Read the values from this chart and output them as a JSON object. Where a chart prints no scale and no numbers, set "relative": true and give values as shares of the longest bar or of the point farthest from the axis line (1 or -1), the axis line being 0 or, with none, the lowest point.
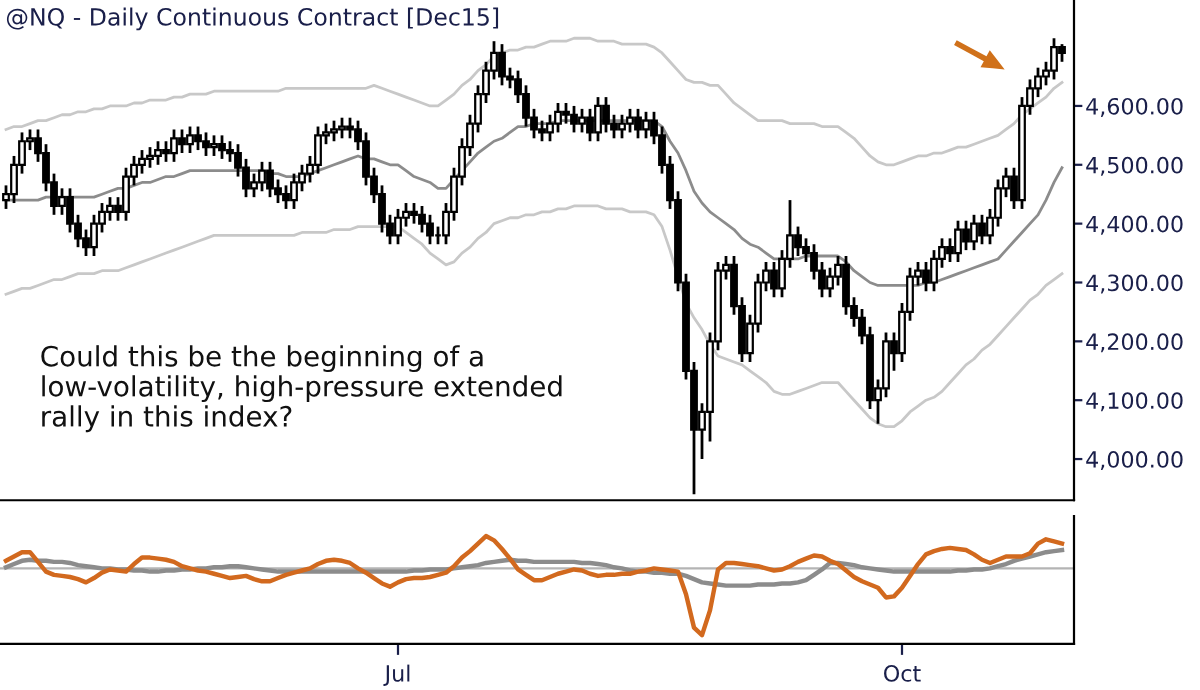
{
  "chart_data": [
    {
      "type": "candlestick",
      "title": "@NQ - Daily Continuous Contract [Dec15]",
      "categories": [
        null,
        null,
        null,
        null,
        null,
        null,
        null,
        null,
        null,
        null,
        null,
        null,
        null,
        null,
        null,
        null,
        null,
        null,
        null,
        null,
        null,
        null,
        null,
        null,
        null,
        null,
        null,
        null,
        null,
        null,
        null,
        null,
        null,
        null,
        null,
        null,
        null,
        null,
        null,
        null,
        null,
        null,
        null,
        null,
        null,
        null,
        null,
        null,
        null,
        null,
        null,
        null,
        null,
        null,
        null,
        null,
        null,
        null,
        null,
        null,
        null,
        null,
        null,
        null,
        null,
        null,
        null,
        null,
        null,
        null,
        null,
        null,
        null,
        null,
        null,
        null,
        null,
        null,
        null,
        null,
        null,
        null,
        null,
        null,
        null,
        null,
        null,
        null,
        null,
        null,
        null,
        null,
        null,
        null,
        null,
        null,
        null,
        null,
        null,
        null,
        null,
        null,
        null,
        null,
        null,
        null,
        null,
        null,
        null,
        null,
        null,
        null,
        null,
        null,
        null,
        null,
        null,
        null,
        null,
        null,
        null,
        null,
        null,
        null,
        null,
        null,
        null,
        null,
        null,
        null,
        null,
        null,
        null
      ],
      "ohlc": [
        [
          4440,
          4465,
          4425,
          4450
        ],
        [
          4450,
          4515,
          4435,
          4500
        ],
        [
          4500,
          4555,
          4485,
          4540
        ],
        [
          4540,
          4560,
          4525,
          4545
        ],
        [
          4545,
          4560,
          4505,
          4520
        ],
        [
          4520,
          4535,
          4455,
          4470
        ],
        [
          4470,
          4485,
          4415,
          4430
        ],
        [
          4430,
          4460,
          4415,
          4445
        ],
        [
          4445,
          4460,
          4385,
          4400
        ],
        [
          4400,
          4415,
          4360,
          4375
        ],
        [
          4375,
          4390,
          4345,
          4360
        ],
        [
          4360,
          4415,
          4345,
          4400
        ],
        [
          4400,
          4435,
          4385,
          4420
        ],
        [
          4420,
          4445,
          4405,
          4430
        ],
        [
          4430,
          4445,
          4405,
          4420
        ],
        [
          4420,
          4495,
          4405,
          4480
        ],
        [
          4480,
          4515,
          4465,
          4500
        ],
        [
          4500,
          4525,
          4485,
          4510
        ],
        [
          4510,
          4530,
          4495,
          4515
        ],
        [
          4515,
          4540,
          4500,
          4525
        ],
        [
          4525,
          4540,
          4505,
          4520
        ],
        [
          4520,
          4560,
          4505,
          4545
        ],
        [
          4545,
          4560,
          4520,
          4535
        ],
        [
          4535,
          4565,
          4520,
          4550
        ],
        [
          4550,
          4565,
          4525,
          4540
        ],
        [
          4540,
          4555,
          4515,
          4530
        ],
        [
          4530,
          4550,
          4515,
          4535
        ],
        [
          4535,
          4550,
          4510,
          4525
        ],
        [
          4525,
          4540,
          4505,
          4520
        ],
        [
          4520,
          4535,
          4480,
          4495
        ],
        [
          4495,
          4510,
          4445,
          4460
        ],
        [
          4460,
          4485,
          4445,
          4470
        ],
        [
          4470,
          4505,
          4455,
          4490
        ],
        [
          4490,
          4505,
          4445,
          4460
        ],
        [
          4460,
          4475,
          4435,
          4450
        ],
        [
          4450,
          4465,
          4425,
          4440
        ],
        [
          4440,
          4485,
          4425,
          4470
        ],
        [
          4470,
          4500,
          4455,
          4485
        ],
        [
          4485,
          4515,
          4470,
          4500
        ],
        [
          4500,
          4565,
          4485,
          4550
        ],
        [
          4550,
          4570,
          4535,
          4555
        ],
        [
          4555,
          4575,
          4540,
          4560
        ],
        [
          4560,
          4580,
          4545,
          4565
        ],
        [
          4565,
          4580,
          4545,
          4560
        ],
        [
          4560,
          4575,
          4525,
          4540
        ],
        [
          4540,
          4555,
          4465,
          4480
        ],
        [
          4480,
          4495,
          4435,
          4450
        ],
        [
          4450,
          4465,
          4385,
          4400
        ],
        [
          4400,
          4415,
          4365,
          4380
        ],
        [
          4380,
          4425,
          4365,
          4410
        ],
        [
          4410,
          4435,
          4395,
          4420
        ],
        [
          4420,
          4435,
          4400,
          4415
        ],
        [
          4415,
          4430,
          4385,
          4400
        ],
        [
          4400,
          4415,
          4365,
          4380
        ],
        [
          4380,
          4395,
          4365,
          4380
        ],
        [
          4380,
          4435,
          4365,
          4420
        ],
        [
          4420,
          4495,
          4405,
          4480
        ],
        [
          4480,
          4545,
          4465,
          4530
        ],
        [
          4530,
          4585,
          4515,
          4570
        ],
        [
          4570,
          4635,
          4555,
          4620
        ],
        [
          4620,
          4675,
          4605,
          4660
        ],
        [
          4660,
          4710,
          4645,
          4690
        ],
        [
          4690,
          4705,
          4635,
          4650
        ],
        [
          4650,
          4665,
          4630,
          4645
        ],
        [
          4645,
          4660,
          4605,
          4620
        ],
        [
          4620,
          4635,
          4565,
          4580
        ],
        [
          4580,
          4595,
          4545,
          4560
        ],
        [
          4560,
          4575,
          4540,
          4555
        ],
        [
          4555,
          4585,
          4540,
          4570
        ],
        [
          4570,
          4605,
          4555,
          4590
        ],
        [
          4590,
          4605,
          4570,
          4585
        ],
        [
          4585,
          4600,
          4555,
          4570
        ],
        [
          4570,
          4595,
          4555,
          4580
        ],
        [
          4580,
          4595,
          4540,
          4555
        ],
        [
          4555,
          4615,
          4540,
          4600
        ],
        [
          4600,
          4615,
          4555,
          4570
        ],
        [
          4570,
          4585,
          4545,
          4560
        ],
        [
          4560,
          4585,
          4545,
          4570
        ],
        [
          4570,
          4595,
          4555,
          4580
        ],
        [
          4580,
          4595,
          4545,
          4560
        ],
        [
          4560,
          4590,
          4545,
          4575
        ],
        [
          4575,
          4590,
          4535,
          4550
        ],
        [
          4550,
          4565,
          4485,
          4500
        ],
        [
          4500,
          4515,
          4425,
          4440
        ],
        [
          4440,
          4455,
          4285,
          4300
        ],
        [
          4300,
          4315,
          4135,
          4150
        ],
        [
          4150,
          4165,
          3940,
          4050
        ],
        [
          4050,
          4095,
          4000,
          4080
        ],
        [
          4080,
          4215,
          4030,
          4200
        ],
        [
          4200,
          4335,
          4185,
          4320
        ],
        [
          4320,
          4345,
          4305,
          4330
        ],
        [
          4330,
          4345,
          4245,
          4260
        ],
        [
          4260,
          4275,
          4165,
          4180
        ],
        [
          4180,
          4245,
          4165,
          4230
        ],
        [
          4230,
          4315,
          4215,
          4300
        ],
        [
          4300,
          4335,
          4285,
          4320
        ],
        [
          4320,
          4335,
          4275,
          4290
        ],
        [
          4290,
          4355,
          4275,
          4340
        ],
        [
          4340,
          4440,
          4325,
          4380
        ],
        [
          4380,
          4395,
          4345,
          4360
        ],
        [
          4360,
          4375,
          4335,
          4350
        ],
        [
          4350,
          4365,
          4305,
          4320
        ],
        [
          4320,
          4335,
          4275,
          4290
        ],
        [
          4290,
          4325,
          4275,
          4310
        ],
        [
          4310,
          4345,
          4295,
          4330
        ],
        [
          4330,
          4345,
          4245,
          4260
        ],
        [
          4260,
          4275,
          4225,
          4240
        ],
        [
          4240,
          4255,
          4195,
          4210
        ],
        [
          4210,
          4225,
          4085,
          4100
        ],
        [
          4100,
          4135,
          4060,
          4120
        ],
        [
          4120,
          4215,
          4105,
          4200
        ],
        [
          4200,
          4215,
          4150,
          4180
        ],
        [
          4180,
          4265,
          4165,
          4250
        ],
        [
          4250,
          4325,
          4235,
          4310
        ],
        [
          4310,
          4335,
          4295,
          4320
        ],
        [
          4320,
          4335,
          4285,
          4300
        ],
        [
          4300,
          4355,
          4285,
          4340
        ],
        [
          4340,
          4375,
          4325,
          4360
        ],
        [
          4360,
          4375,
          4335,
          4350
        ],
        [
          4350,
          4405,
          4335,
          4390
        ],
        [
          4390,
          4405,
          4355,
          4370
        ],
        [
          4370,
          4415,
          4355,
          4400
        ],
        [
          4400,
          4415,
          4365,
          4380
        ],
        [
          4380,
          4425,
          4365,
          4410
        ],
        [
          4410,
          4475,
          4395,
          4460
        ],
        [
          4460,
          4495,
          4445,
          4480
        ],
        [
          4480,
          4495,
          4425,
          4440
        ],
        [
          4440,
          4615,
          4425,
          4600
        ],
        [
          4600,
          4645,
          4585,
          4630
        ],
        [
          4630,
          4665,
          4615,
          4650
        ],
        [
          4650,
          4675,
          4635,
          4660
        ],
        [
          4660,
          4715,
          4645,
          4700
        ],
        [
          4700,
          4705,
          4675,
          4690
        ]
      ],
      "series": [
        {
          "type": "line",
          "color": "#c8c8c8",
          "values": [
            4560,
            4565,
            4565,
            4570,
            4575,
            4575,
            4580,
            4585,
            4585,
            4590,
            4590,
            4595,
            4595,
            4600,
            4600,
            4600,
            4605,
            4605,
            4610,
            4610,
            4610,
            4615,
            4615,
            4620,
            4620,
            4620,
            4625,
            4625,
            4625,
            4625,
            4625,
            4625,
            4625,
            4625,
            4625,
            4630,
            4630,
            4630,
            4630,
            4630,
            4630,
            4630,
            4630,
            4630,
            4630,
            4630,
            4635,
            4630,
            4625,
            4620,
            4615,
            4610,
            4605,
            4600,
            4600,
            4610,
            4620,
            4635,
            4645,
            4660,
            4670,
            4685,
            4690,
            4695,
            4695,
            4700,
            4700,
            4705,
            4710,
            4710,
            4710,
            4715,
            4715,
            4715,
            4710,
            4710,
            4710,
            4705,
            4705,
            4705,
            4705,
            4700,
            4690,
            4675,
            4660,
            4645,
            4640,
            4640,
            4635,
            4635,
            4620,
            4605,
            4595,
            4585,
            4575,
            4575,
            4575,
            4575,
            4570,
            4570,
            4570,
            4570,
            4565,
            4565,
            4565,
            4555,
            4545,
            4530,
            4515,
            4505,
            4500,
            4500,
            4505,
            4510,
            4515,
            4515,
            4520,
            4520,
            4525,
            4530,
            4530,
            4535,
            4540,
            4545,
            4550,
            4560,
            4570,
            4585,
            4595,
            4605,
            4615,
            4630,
            4640
          ]
        },
        {
          "type": "line",
          "color": "#8c8c8c",
          "values": [
            4440,
            4440,
            4440,
            4440,
            4440,
            4445,
            4445,
            4445,
            4445,
            4445,
            4445,
            4445,
            4450,
            4455,
            4460,
            4460,
            4465,
            4470,
            4470,
            4475,
            4480,
            4480,
            4485,
            4490,
            4490,
            4490,
            4490,
            4490,
            4490,
            4490,
            4490,
            4490,
            4490,
            4485,
            4485,
            4480,
            4480,
            4480,
            4485,
            4490,
            4495,
            4500,
            4505,
            4510,
            4515,
            4510,
            4510,
            4505,
            4500,
            4500,
            4490,
            4480,
            4475,
            4470,
            4460,
            4460,
            4475,
            4490,
            4505,
            4520,
            4530,
            4540,
            4545,
            4555,
            4565,
            4565,
            4570,
            4570,
            4570,
            4575,
            4575,
            4575,
            4575,
            4575,
            4575,
            4575,
            4575,
            4575,
            4575,
            4575,
            4575,
            4575,
            4565,
            4540,
            4520,
            4490,
            4455,
            4435,
            4420,
            4410,
            4400,
            4390,
            4375,
            4365,
            4360,
            4350,
            4340,
            4340,
            4340,
            4340,
            4345,
            4345,
            4345,
            4345,
            4345,
            4335,
            4320,
            4310,
            4300,
            4295,
            4295,
            4295,
            4295,
            4295,
            4295,
            4300,
            4300,
            4305,
            4310,
            4315,
            4320,
            4325,
            4330,
            4335,
            4340,
            4355,
            4370,
            4385,
            4400,
            4415,
            4440,
            4470,
            4495
          ]
        },
        {
          "type": "line",
          "color": "#c8c8c8",
          "values": [
            4280,
            4285,
            4290,
            4290,
            4295,
            4300,
            4305,
            4305,
            4310,
            4315,
            4315,
            4315,
            4320,
            4320,
            4320,
            4325,
            4330,
            4335,
            4340,
            4345,
            4350,
            4355,
            4360,
            4365,
            4370,
            4375,
            4380,
            4380,
            4380,
            4380,
            4380,
            4380,
            4380,
            4380,
            4380,
            4380,
            4380,
            4385,
            4385,
            4385,
            4385,
            4390,
            4390,
            4390,
            4395,
            4395,
            4395,
            4395,
            4395,
            4395,
            4385,
            4375,
            4365,
            4350,
            4340,
            4330,
            4335,
            4350,
            4360,
            4375,
            4385,
            4400,
            4405,
            4410,
            4410,
            4415,
            4415,
            4420,
            4420,
            4425,
            4425,
            4430,
            4430,
            4430,
            4430,
            4425,
            4425,
            4425,
            4420,
            4420,
            4420,
            4415,
            4395,
            4355,
            4310,
            4265,
            4240,
            4220,
            4195,
            4175,
            4170,
            4165,
            4160,
            4150,
            4140,
            4130,
            4115,
            4110,
            4110,
            4115,
            4120,
            4125,
            4130,
            4130,
            4130,
            4115,
            4100,
            4085,
            4070,
            4060,
            4055,
            4055,
            4065,
            4080,
            4090,
            4100,
            4105,
            4115,
            4130,
            4145,
            4160,
            4170,
            4185,
            4195,
            4210,
            4225,
            4240,
            4255,
            4270,
            4280,
            4295,
            4305,
            4315
          ]
        }
      ],
      "ylim": [
        3930,
        4780
      ],
      "yticks": [
        {
          "value": 4000,
          "label": "4,000.00"
        },
        {
          "value": 4100,
          "label": "4,100.00"
        },
        {
          "value": 4200,
          "label": "4,200.00"
        },
        {
          "value": 4300,
          "label": "4,300.00"
        },
        {
          "value": 4400,
          "label": "4,400.00"
        },
        {
          "value": 4500,
          "label": "4,500.00"
        },
        {
          "value": 4600,
          "label": "4,600.00"
        }
      ],
      "tick_labels": "y",
      "annotations": [
        "Could this be the beginning of a\nlow-volatility, high-pressure extended\nrally in this index?"
      ]
    },
    {
      "type": "line",
      "relative": true,
      "categories": [
        null,
        null,
        null,
        null,
        null,
        null,
        null,
        null,
        null,
        null,
        null,
        null,
        null,
        null,
        null,
        null,
        null,
        null,
        null,
        null,
        null,
        null,
        null,
        null,
        null,
        null,
        null,
        null,
        null,
        null,
        null,
        null,
        null,
        null,
        null,
        null,
        null,
        null,
        null,
        null,
        null,
        null,
        null,
        null,
        null,
        null,
        null,
        null,
        null,
        "Jul",
        null,
        null,
        null,
        null,
        null,
        null,
        null,
        null,
        null,
        null,
        null,
        null,
        null,
        null,
        null,
        null,
        null,
        null,
        null,
        null,
        null,
        null,
        null,
        null,
        null,
        null,
        null,
        null,
        null,
        null,
        null,
        null,
        null,
        null,
        null,
        null,
        null,
        null,
        null,
        null,
        null,
        null,
        null,
        null,
        null,
        null,
        null,
        null,
        null,
        null,
        null,
        null,
        null,
        null,
        null,
        null,
        null,
        null,
        null,
        null,
        null,
        null,
        "Oct",
        null,
        null,
        null,
        null,
        null,
        null,
        null,
        null,
        null,
        null,
        null,
        null,
        null,
        null,
        null,
        null,
        null,
        null,
        null,
        null
      ],
      "series": [
        {
          "color": "#8c8c8c",
          "values": [
            0.71,
            0.74,
            0.77,
            0.78,
            0.77,
            0.77,
            0.76,
            0.76,
            0.75,
            0.73,
            0.72,
            0.71,
            0.7,
            0.7,
            0.69,
            0.69,
            0.68,
            0.68,
            0.67,
            0.67,
            0.68,
            0.68,
            0.69,
            0.69,
            0.7,
            0.7,
            0.71,
            0.71,
            0.72,
            0.72,
            0.71,
            0.7,
            0.69,
            0.68,
            0.67,
            0.67,
            0.67,
            0.67,
            0.67,
            0.67,
            0.67,
            0.67,
            0.67,
            0.67,
            0.67,
            0.67,
            0.67,
            0.67,
            0.67,
            0.67,
            0.67,
            0.68,
            0.68,
            0.69,
            0.69,
            0.69,
            0.7,
            0.71,
            0.72,
            0.73,
            0.75,
            0.76,
            0.77,
            0.78,
            0.77,
            0.77,
            0.76,
            0.76,
            0.76,
            0.76,
            0.76,
            0.76,
            0.75,
            0.75,
            0.74,
            0.73,
            0.71,
            0.7,
            0.68,
            0.67,
            0.67,
            0.66,
            0.66,
            0.65,
            0.65,
            0.63,
            0.6,
            0.57,
            0.56,
            0.55,
            0.54,
            0.54,
            0.54,
            0.54,
            0.55,
            0.55,
            0.55,
            0.56,
            0.56,
            0.57,
            0.59,
            0.64,
            0.69,
            0.75,
            0.75,
            0.74,
            0.73,
            0.71,
            0.7,
            0.69,
            0.68,
            0.67,
            0.67,
            0.67,
            0.67,
            0.67,
            0.67,
            0.67,
            0.67,
            0.68,
            0.68,
            0.69,
            0.69,
            0.7,
            0.72,
            0.74,
            0.77,
            0.79,
            0.81,
            0.83,
            0.85,
            0.86,
            0.87
          ]
        },
        {
          "color": "#d2691e",
          "values": [
            0.77,
            0.81,
            0.85,
            0.85,
            0.76,
            0.67,
            0.64,
            0.63,
            0.62,
            0.6,
            0.57,
            0.61,
            0.66,
            0.69,
            0.68,
            0.67,
            0.74,
            0.8,
            0.8,
            0.79,
            0.78,
            0.76,
            0.72,
            0.7,
            0.68,
            0.67,
            0.65,
            0.63,
            0.61,
            0.62,
            0.63,
            0.6,
            0.58,
            0.58,
            0.61,
            0.64,
            0.66,
            0.68,
            0.7,
            0.74,
            0.77,
            0.78,
            0.77,
            0.75,
            0.7,
            0.66,
            0.61,
            0.56,
            0.53,
            0.57,
            0.6,
            0.61,
            0.61,
            0.62,
            0.64,
            0.66,
            0.72,
            0.8,
            0.86,
            0.93,
            1.0,
            0.96,
            0.88,
            0.79,
            0.69,
            0.64,
            0.59,
            0.59,
            0.62,
            0.65,
            0.67,
            0.69,
            0.68,
            0.65,
            0.63,
            0.64,
            0.64,
            0.65,
            0.65,
            0.67,
            0.68,
            0.7,
            0.69,
            0.68,
            0.67,
            0.46,
            0.15,
            0.08,
            0.31,
            0.69,
            0.75,
            0.75,
            0.74,
            0.73,
            0.72,
            0.7,
            0.68,
            0.69,
            0.72,
            0.76,
            0.79,
            0.82,
            0.81,
            0.77,
            0.74,
            0.68,
            0.62,
            0.58,
            0.55,
            0.52,
            0.43,
            0.44,
            0.52,
            0.63,
            0.74,
            0.83,
            0.86,
            0.88,
            0.89,
            0.88,
            0.87,
            0.83,
            0.78,
            0.75,
            0.78,
            0.81,
            0.81,
            0.81,
            0.84,
            0.93,
            0.97,
            0.95,
            0.93
          ]
        }
      ],
      "ref_lines": [
        {
          "axis": "y",
          "value": 0.7,
          "color": "#b4b4b4"
        }
      ],
      "tick_labels": "x"
    }
  ]
}
